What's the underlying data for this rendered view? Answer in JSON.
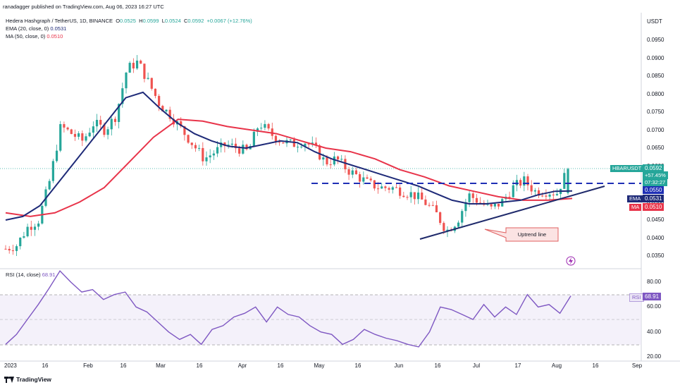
{
  "header": {
    "publisher": "ranadagger published on TradingView.com, Aug 06, 2023 16:27 UTC",
    "symbol_line": "Hedera Hashgraph / TetherUS, 1D, BINANCE",
    "ohlc": {
      "o_label": "O",
      "o": "0.0525",
      "h_label": "H",
      "h": "0.0599",
      "l_label": "L",
      "l": "0.0524",
      "c_label": "C",
      "c": "0.0592",
      "change": "+0.0067 (+12.76%)"
    },
    "ema_label": "EMA (20, close, 0)",
    "ema_value": "0.0531",
    "ma_label": "MA (50, close, 0)",
    "ma_value": "0.0510",
    "currency": "USDT"
  },
  "price_axis": [
    "0.0950",
    "0.0900",
    "0.0850",
    "0.0800",
    "0.0750",
    "0.0700",
    "0.0650",
    "0.0600",
    "0.0550",
    "0.0500",
    "0.0450",
    "0.0400",
    "0.0350"
  ],
  "price_tags": {
    "symbol_tag": "HBARUSDT",
    "last_price": "0.0592",
    "last_change": "+57.45%",
    "countdown": "07:32:27",
    "level": "0.0550",
    "ema_tag": "EMA",
    "ema_price": "0.0531",
    "ma_tag": "MA",
    "ma_price": "0.0510"
  },
  "annotation": "Uptrend line",
  "rsi": {
    "label": "RSI (14, close)",
    "value": "68.91",
    "axis": [
      "80.00",
      "60.00",
      "40.00",
      "20.00"
    ],
    "tag": "RSI",
    "tag_value": "68.91"
  },
  "time_axis": [
    "2023",
    "16",
    "Feb",
    "16",
    "Mar",
    "16",
    "Apr",
    "16",
    "May",
    "16",
    "Jun",
    "16",
    "Jul",
    "17",
    "Aug",
    "16",
    "Sep"
  ],
  "footer": "TradingView",
  "colors": {
    "ema": "#1e2a78",
    "ma": "#e8344a",
    "rsi": "#7e57c2",
    "up": "#26a69a",
    "down": "#ef5350",
    "level": "#1f2fb5"
  },
  "chart_data": {
    "type": "candlestick",
    "title": "Hedera Hashgraph / TetherUS, 1D, BINANCE",
    "ylabel": "USDT",
    "ylim": [
      0.0335,
      0.0985
    ],
    "x": [
      "2023",
      "16",
      "Feb",
      "16",
      "Mar",
      "16",
      "Apr",
      "16",
      "May",
      "16",
      "Jun",
      "16",
      "Jul",
      "17",
      "Aug",
      "16",
      "Sep"
    ],
    "close_path": [
      0.037,
      0.038,
      0.043,
      0.045,
      0.056,
      0.071,
      0.069,
      0.067,
      0.072,
      0.07,
      0.074,
      0.087,
      0.089,
      0.083,
      0.077,
      0.074,
      0.07,
      0.066,
      0.062,
      0.064,
      0.066,
      0.065,
      0.064,
      0.072,
      0.069,
      0.067,
      0.066,
      0.067,
      0.065,
      0.061,
      0.062,
      0.059,
      0.057,
      0.055,
      0.054,
      0.054,
      0.053,
      0.052,
      0.05,
      0.047,
      0.042,
      0.045,
      0.052,
      0.05,
      0.048,
      0.05,
      0.054,
      0.056,
      0.053,
      0.053,
      0.0525,
      0.0592
    ],
    "ema20_path": [
      0.045,
      0.046,
      0.049,
      0.055,
      0.061,
      0.067,
      0.073,
      0.079,
      0.0805,
      0.076,
      0.072,
      0.069,
      0.067,
      0.0655,
      0.065,
      0.066,
      0.067,
      0.0665,
      0.064,
      0.062,
      0.0605,
      0.059,
      0.0575,
      0.056,
      0.0545,
      0.0525,
      0.0505,
      0.0495,
      0.0495,
      0.05,
      0.0505,
      0.052,
      0.053,
      0.0531
    ],
    "ma50_path": [
      0.047,
      0.046,
      0.047,
      0.05,
      0.054,
      0.061,
      0.068,
      0.073,
      0.0725,
      0.071,
      0.07,
      0.069,
      0.067,
      0.065,
      0.064,
      0.062,
      0.059,
      0.057,
      0.0545,
      0.053,
      0.0515,
      0.0505,
      0.0505,
      0.051
    ],
    "horizontal_level": 0.055,
    "uptrend_line": [
      [
        0.0395,
        "Jun"
      ],
      [
        0.057,
        "Aug"
      ]
    ],
    "rsi_ylim": [
      17,
      95
    ],
    "rsi_path": [
      30,
      38,
      50,
      62,
      75,
      89,
      80,
      72,
      74,
      66,
      70,
      72,
      60,
      56,
      48,
      40,
      34,
      38,
      30,
      42,
      45,
      52,
      55,
      60,
      48,
      60,
      54,
      52,
      45,
      40,
      38,
      30,
      34,
      42,
      38,
      35,
      33,
      30,
      28,
      40,
      60,
      58,
      54,
      50,
      62,
      52,
      60,
      54,
      70,
      60,
      62,
      55,
      68.91
    ],
    "rsi_bands": [
      70,
      50,
      30
    ]
  }
}
